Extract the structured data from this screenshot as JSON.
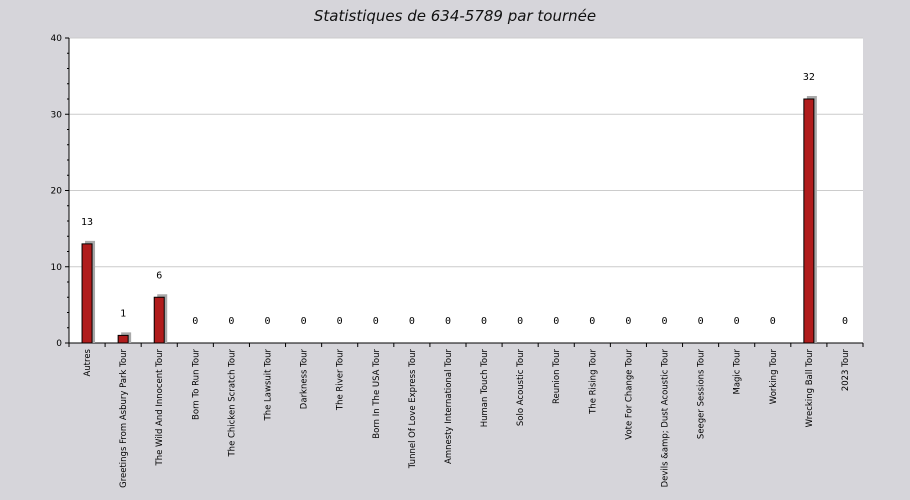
{
  "chart_data": {
    "type": "bar",
    "title": "Statistiques de 634-5789 par tournée",
    "xlabel": "",
    "ylabel": "",
    "ylim": [
      0,
      40
    ],
    "yticks": [
      0,
      10,
      20,
      30,
      40
    ],
    "grid": true,
    "categories": [
      "Autres",
      "Greetings From Asbury Park Tour",
      "The Wild And Innocent Tour",
      "Born To Run Tour",
      "The Chicken Scratch Tour",
      "The Lawsuit Tour",
      "Darkness Tour",
      "The River Tour",
      "Born In The USA Tour",
      "Tunnel Of Love Express Tour",
      "Amnesty International Tour",
      "Human Touch Tour",
      "Solo Acoustic Tour",
      "Reunion Tour",
      "The Rising Tour",
      "Vote For Change Tour",
      "Devils &amp; Dust Acoustic Tour",
      "Seeger Sessions Tour",
      "Magic Tour",
      "Working Tour",
      "Wrecking Ball Tour",
      "2023 Tour"
    ],
    "values": [
      13,
      1,
      6,
      0,
      0,
      0,
      0,
      0,
      0,
      0,
      0,
      0,
      0,
      0,
      0,
      0,
      0,
      0,
      0,
      0,
      32,
      0
    ],
    "colors": {
      "bar": "#b01c1c",
      "bar_shadow": "#a9a9a9",
      "plot_bg": "#ffffff",
      "grid": "#cccccc",
      "page_bg": "#d6d5da"
    }
  }
}
